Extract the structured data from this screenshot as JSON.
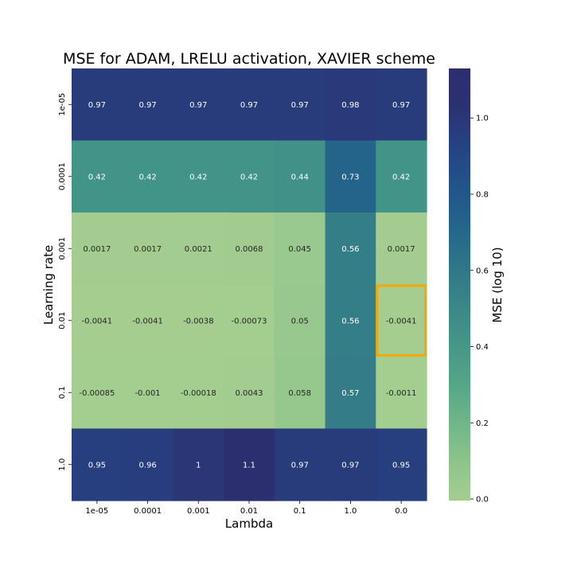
{
  "chart_data": {
    "type": "heatmap",
    "title": "MSE for ADAM, LRELU activation, XAVIER scheme",
    "xlabel": "Lambda",
    "ylabel": "Learning rate",
    "x_categories": [
      "1e-05",
      "0.0001",
      "0.001",
      "0.01",
      "0.1",
      "1.0",
      "0.0"
    ],
    "y_categories": [
      "1e-05",
      "0.0001",
      "0.001",
      "0.01",
      "0.1",
      "1.0"
    ],
    "values": [
      [
        0.97,
        0.97,
        0.97,
        0.97,
        0.97,
        0.98,
        0.97
      ],
      [
        0.42,
        0.42,
        0.42,
        0.42,
        0.44,
        0.73,
        0.42
      ],
      [
        0.0017,
        0.0017,
        0.0021,
        0.0068,
        0.045,
        0.56,
        0.0017
      ],
      [
        -0.0041,
        -0.0041,
        -0.0038,
        -0.00073,
        0.05,
        0.56,
        -0.0041
      ],
      [
        -0.00085,
        -0.001,
        -0.00018,
        0.0043,
        0.058,
        0.57,
        -0.0011
      ],
      [
        0.95,
        0.96,
        1.0,
        1.1,
        0.97,
        0.97,
        0.95
      ]
    ],
    "cell_labels": [
      [
        "0.97",
        "0.97",
        "0.97",
        "0.97",
        "0.97",
        "0.98",
        "0.97"
      ],
      [
        "0.42",
        "0.42",
        "0.42",
        "0.42",
        "0.44",
        "0.73",
        "0.42"
      ],
      [
        "0.0017",
        "0.0017",
        "0.0021",
        "0.0068",
        "0.045",
        "0.56",
        "0.0017"
      ],
      [
        "-0.0041",
        "-0.0041",
        "-0.0038",
        "-0.00073",
        "0.05",
        "0.56",
        "-0.0041"
      ],
      [
        "-0.00085",
        "-0.001",
        "-0.00018",
        "0.0043",
        "0.058",
        "0.57",
        "-0.0011"
      ],
      [
        "0.95",
        "0.96",
        "1",
        "1.1",
        "0.97",
        "0.97",
        "0.95"
      ]
    ],
    "highlight_cell": {
      "row": 3,
      "col": 6,
      "color": "#f5a800"
    },
    "colorbar": {
      "label": "MSE (log 10)",
      "range": [
        -0.0041,
        1.13
      ],
      "ticks": [
        "0.0",
        "0.2",
        "0.4",
        "0.6",
        "0.8",
        "1.0"
      ],
      "tick_values": [
        0.0,
        0.2,
        0.4,
        0.6,
        0.8,
        1.0
      ],
      "colormap": "crest",
      "colors": [
        "#a5cd90",
        "#8cc48b",
        "#6fb688",
        "#53a587",
        "#449688",
        "#3a8688",
        "#2e7588",
        "#24658a",
        "#215489",
        "#254383",
        "#2c3172",
        "#2c2e6e"
      ]
    },
    "cell_text_colors": {
      "light_background": "#262626",
      "dark_background": "#ffffff"
    }
  }
}
